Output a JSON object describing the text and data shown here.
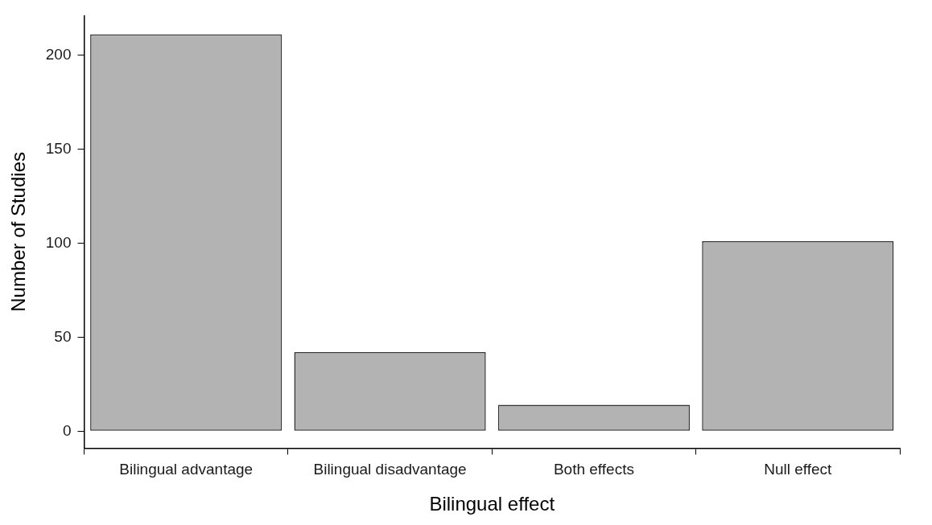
{
  "chart_data": {
    "type": "bar",
    "xlabel": "Bilingual effect",
    "ylabel": "Number of Studies",
    "categories": [
      "Bilingual advantage",
      "Bilingual disadvantage",
      "Both effects",
      "Null effect"
    ],
    "values": [
      211,
      42,
      14,
      101
    ],
    "color": "#b3b3b3",
    "ylim": [
      -9,
      221
    ],
    "yticks": [
      0,
      50,
      100,
      150,
      200
    ],
    "grid": false,
    "legend": false
  }
}
